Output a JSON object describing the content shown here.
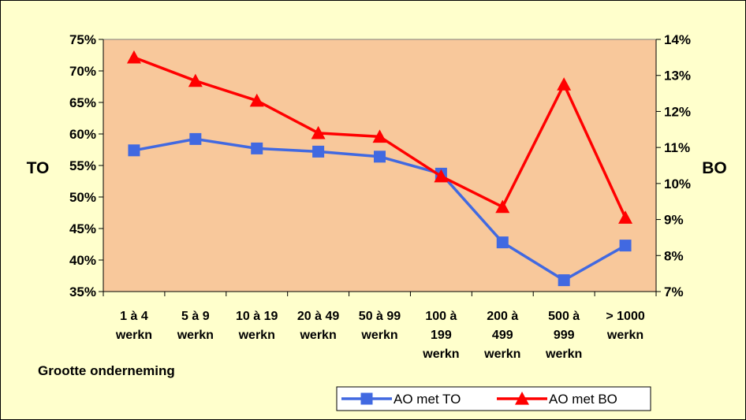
{
  "chart_data": {
    "type": "line",
    "title": "",
    "xlabel": "Grootte onderneming",
    "ylabel": "TO",
    "y2label": "BO",
    "categories": [
      [
        "1 à 4",
        "werkn"
      ],
      [
        "5 à 9",
        "werkn"
      ],
      [
        "10 à 19",
        "werkn"
      ],
      [
        "20 à 49",
        "werkn"
      ],
      [
        "50 à 99",
        "werkn"
      ],
      [
        "100 à",
        "199",
        "werkn"
      ],
      [
        "200 à",
        "499",
        "werkn"
      ],
      [
        "500 à",
        "999",
        "werkn"
      ],
      [
        "> 1000",
        "werkn"
      ]
    ],
    "ylim": [
      35,
      75
    ],
    "y_ticks": [
      35,
      40,
      45,
      50,
      55,
      60,
      65,
      70,
      75
    ],
    "y_tick_labels": [
      "35%",
      "40%",
      "45%",
      "50%",
      "55%",
      "60%",
      "65%",
      "70%",
      "75%"
    ],
    "y2lim": [
      7,
      14
    ],
    "y2_ticks": [
      7,
      8,
      9,
      10,
      11,
      12,
      13,
      14
    ],
    "y2_tick_labels": [
      "7%",
      "8%",
      "9%",
      "10%",
      "11%",
      "12%",
      "13%",
      "14%"
    ],
    "series": [
      {
        "name": "AO met TO",
        "axis": "left",
        "color": "#4169e1",
        "marker": "square",
        "values": [
          57.4,
          59.2,
          57.7,
          57.2,
          56.4,
          53.7,
          42.8,
          36.8,
          42.3
        ]
      },
      {
        "name": "AO met BO",
        "axis": "right",
        "color": "#ff0000",
        "marker": "triangle",
        "values": [
          13.5,
          12.85,
          12.3,
          11.4,
          11.3,
          10.2,
          9.35,
          12.75,
          9.05
        ]
      }
    ],
    "grid": false,
    "legend_position": "bottom-right",
    "colors": {
      "background": "#ffffcc",
      "plot_area": "#f8c89b",
      "axes": "#000000"
    }
  }
}
